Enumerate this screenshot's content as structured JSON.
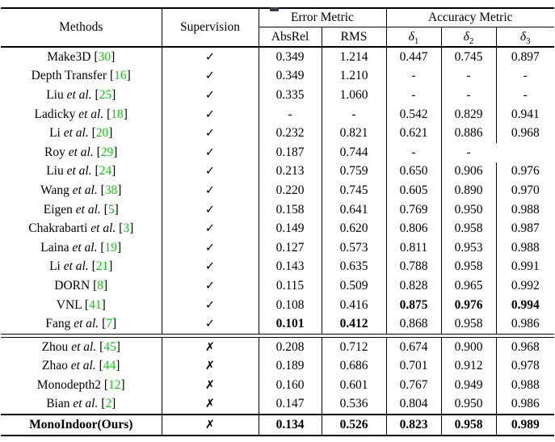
{
  "colors": {
    "citation_green": "#00d400",
    "text": "#000000",
    "background": "#ffffff",
    "rule": "#000000"
  },
  "table": {
    "header": {
      "methods": "Methods",
      "supervision": "Supervision",
      "error_metric": "Error Metric",
      "accuracy_metric": "Accuracy Metric",
      "abs_rel": "AbsRel",
      "rms": "RMS",
      "delta_symbol": "δ",
      "delta_subscripts": [
        "1",
        "2",
        "3"
      ]
    },
    "marks": {
      "check": "✓",
      "cross": "✗"
    },
    "etal_label": "et al.",
    "cite_brackets": [
      "[",
      "]"
    ],
    "rows": [
      {
        "name": "Make3D",
        "etal": false,
        "cite": "30",
        "section": "supervised",
        "supervised": true,
        "values": [
          "0.349",
          "1.214",
          "0.447",
          "0.745",
          "0.897"
        ],
        "bold_values": [],
        "bold_name": false
      },
      {
        "name": "Depth Transfer",
        "etal": false,
        "cite": "16",
        "section": "supervised",
        "supervised": true,
        "values": [
          "0.349",
          "1.210",
          "-",
          "-",
          "-"
        ],
        "bold_values": [],
        "bold_name": false
      },
      {
        "name": "Liu",
        "etal": true,
        "cite": "25",
        "section": "supervised",
        "supervised": true,
        "values": [
          "0.335",
          "1.060",
          "-",
          "-",
          "-"
        ],
        "bold_values": [],
        "bold_name": false
      },
      {
        "name": "Ladicky",
        "etal": true,
        "cite": "18",
        "section": "supervised",
        "supervised": true,
        "values": [
          "-",
          "-",
          "0.542",
          "0.829",
          "0.941"
        ],
        "bold_values": [],
        "bold_name": false
      },
      {
        "name": "Li",
        "etal": true,
        "cite": "20",
        "section": "supervised",
        "supervised": true,
        "values": [
          "0.232",
          "0.821",
          "0.621",
          "0.886",
          "0.968"
        ],
        "bold_values": [],
        "bold_name": false
      },
      {
        "name": "Roy",
        "etal": true,
        "cite": "29",
        "section": "supervised",
        "supervised": true,
        "values": [
          "0.187",
          "0.744",
          "-",
          "-",
          ""
        ],
        "bold_values": [],
        "bold_name": false,
        "merge_delta3": true
      },
      {
        "name": "Liu",
        "etal": true,
        "cite": "24",
        "section": "supervised",
        "supervised": true,
        "values": [
          "0.213",
          "0.759",
          "0.650",
          "0.906",
          "0.976"
        ],
        "bold_values": [],
        "bold_name": false
      },
      {
        "name": "Wang",
        "etal": true,
        "cite": "38",
        "section": "supervised",
        "supervised": true,
        "values": [
          "0.220",
          "0.745",
          "0.605",
          "0.890",
          "0.970"
        ],
        "bold_values": [],
        "bold_name": false
      },
      {
        "name": "Eigen",
        "etal": true,
        "cite": "5",
        "section": "supervised",
        "supervised": true,
        "values": [
          "0.158",
          "0.641",
          "0.769",
          "0.950",
          "0.988"
        ],
        "bold_values": [],
        "bold_name": false
      },
      {
        "name": "Chakrabarti",
        "etal": true,
        "cite": "3",
        "section": "supervised",
        "supervised": true,
        "values": [
          "0.149",
          "0.620",
          "0.806",
          "0.958",
          "0.987"
        ],
        "bold_values": [],
        "bold_name": false
      },
      {
        "name": "Laina",
        "etal": true,
        "cite": "19",
        "section": "supervised",
        "supervised": true,
        "values": [
          "0.127",
          "0.573",
          "0.811",
          "0.953",
          "0.988"
        ],
        "bold_values": [],
        "bold_name": false
      },
      {
        "name": "Li",
        "etal": true,
        "cite": "21",
        "section": "supervised",
        "supervised": true,
        "values": [
          "0.143",
          "0.635",
          "0.788",
          "0.958",
          "0.991"
        ],
        "bold_values": [],
        "bold_name": false
      },
      {
        "name": "DORN",
        "etal": false,
        "cite": "8",
        "section": "supervised",
        "supervised": true,
        "values": [
          "0.115",
          "0.509",
          "0.828",
          "0.965",
          "0.992"
        ],
        "bold_values": [],
        "bold_name": false
      },
      {
        "name": "VNL",
        "etal": false,
        "cite": "41",
        "section": "supervised",
        "supervised": true,
        "values": [
          "0.108",
          "0.416",
          "0.875",
          "0.976",
          "0.994"
        ],
        "bold_values": [
          2,
          3,
          4
        ],
        "bold_name": false
      },
      {
        "name": "Fang",
        "etal": true,
        "cite": "7",
        "section": "supervised",
        "supervised": true,
        "values": [
          "0.101",
          "0.412",
          "0.868",
          "0.958",
          "0.986"
        ],
        "bold_values": [
          0,
          1
        ],
        "bold_name": false
      },
      {
        "name": "Zhou",
        "etal": true,
        "cite": "45",
        "section": "self",
        "supervised": false,
        "values": [
          "0.208",
          "0.712",
          "0.674",
          "0.900",
          "0.968"
        ],
        "bold_values": [],
        "bold_name": false
      },
      {
        "name": "Zhao",
        "etal": true,
        "cite": "44",
        "section": "self",
        "supervised": false,
        "values": [
          "0.189",
          "0.686",
          "0.701",
          "0.912",
          "0.978"
        ],
        "bold_values": [],
        "bold_name": false
      },
      {
        "name": "Monodepth2",
        "etal": false,
        "cite": "12",
        "section": "self",
        "supervised": false,
        "values": [
          "0.160",
          "0.601",
          "0.767",
          "0.949",
          "0.988"
        ],
        "bold_values": [],
        "bold_name": false
      },
      {
        "name": "Bian",
        "etal": true,
        "cite": "2",
        "section": "self",
        "supervised": false,
        "values": [
          "0.147",
          "0.536",
          "0.804",
          "0.950",
          "0.986"
        ],
        "bold_values": [],
        "bold_name": false
      },
      {
        "name": "MonoIndoor(Ours)",
        "etal": false,
        "cite": null,
        "section": "ours",
        "supervised": false,
        "values": [
          "0.134",
          "0.526",
          "0.823",
          "0.958",
          "0.989"
        ],
        "bold_values": [
          0,
          1,
          2,
          3,
          4
        ],
        "bold_name": true
      }
    ]
  },
  "chart_data": {
    "type": "table",
    "title": "Depth estimation results on indoor benchmark (Error and Accuracy metrics)",
    "columns": [
      "Methods",
      "Supervision",
      "AbsRel",
      "RMS",
      "delta1",
      "delta2",
      "delta3"
    ],
    "best_supervised": {
      "AbsRel": 0.101,
      "RMS": 0.412,
      "delta1": 0.875,
      "delta2": 0.976,
      "delta3": 0.994
    },
    "ours": {
      "method": "MonoIndoor(Ours)",
      "AbsRel": 0.134,
      "RMS": 0.526,
      "delta1": 0.823,
      "delta2": 0.958,
      "delta3": 0.989
    }
  }
}
